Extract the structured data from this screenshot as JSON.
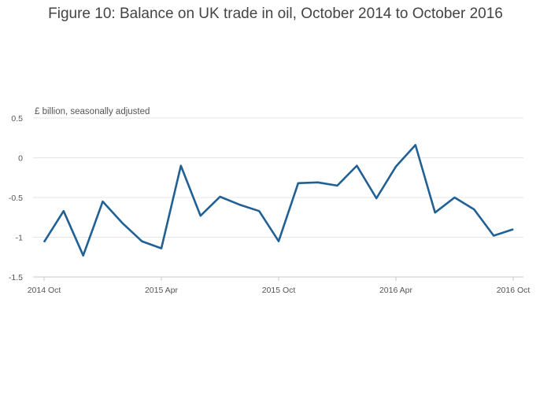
{
  "chart_data": {
    "type": "line",
    "title": "Figure 10: Balance on UK trade in oil, October 2014 to October 2016",
    "ylabel": "£ billion, seasonally adjusted",
    "xlabel": "",
    "ylim": [
      -1.5,
      0.5
    ],
    "y_ticks": [
      "0.5",
      "0",
      "-0.5",
      "-1",
      "-1.5"
    ],
    "y_tick_values": [
      0.5,
      0,
      -0.5,
      -1,
      -1.5
    ],
    "x_ticks": [
      "2014 Oct",
      "2015 Apr",
      "2015 Oct",
      "2016 Apr",
      "2016 Oct"
    ],
    "x_tick_index": [
      0,
      6,
      12,
      18,
      24
    ],
    "grid": "horizontal",
    "line_color": "#206095",
    "x": [
      "2014 Oct",
      "2014 Nov",
      "2014 Dec",
      "2015 Jan",
      "2015 Feb",
      "2015 Mar",
      "2015 Apr",
      "2015 May",
      "2015 Jun",
      "2015 Jul",
      "2015 Aug",
      "2015 Sep",
      "2015 Oct",
      "2015 Nov",
      "2015 Dec",
      "2016 Jan",
      "2016 Feb",
      "2016 Mar",
      "2016 Apr",
      "2016 May",
      "2016 Jun",
      "2016 Jul",
      "2016 Aug",
      "2016 Sep",
      "2016 Oct"
    ],
    "series": [
      {
        "values": [
          -1.06,
          -0.67,
          -1.23,
          -0.55,
          -0.82,
          -1.05,
          -1.14,
          -0.1,
          -0.73,
          -0.49,
          -0.59,
          -0.67,
          -1.05,
          -0.32,
          -0.31,
          -0.35,
          -0.1,
          -0.51,
          -0.11,
          0.16,
          -0.69,
          -0.5,
          -0.65,
          -0.98,
          -0.9
        ]
      }
    ]
  }
}
